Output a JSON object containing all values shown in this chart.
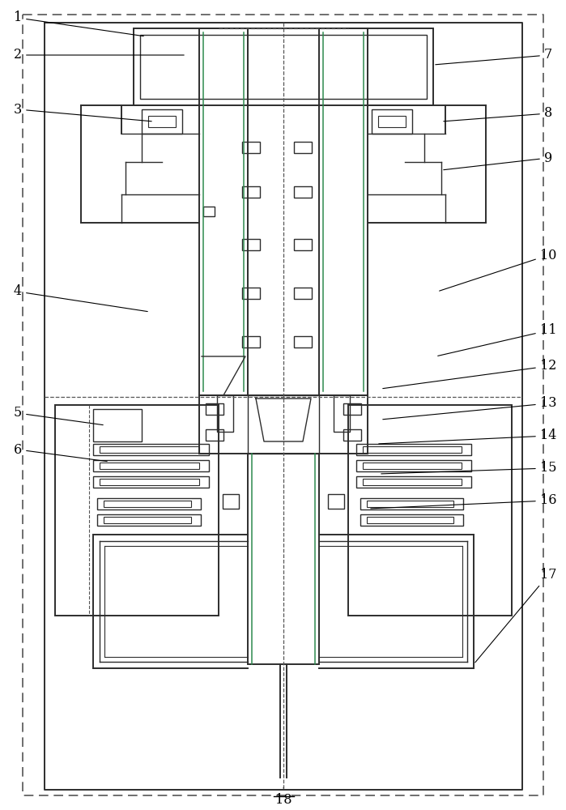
{
  "bg_color": "#ffffff",
  "lc": "#2d2d2d",
  "gc": "#2d8a4e",
  "pc": "#7b3fa0",
  "dc": "#555555",
  "figsize": [
    6.99,
    10.0
  ],
  "dpi": 100
}
